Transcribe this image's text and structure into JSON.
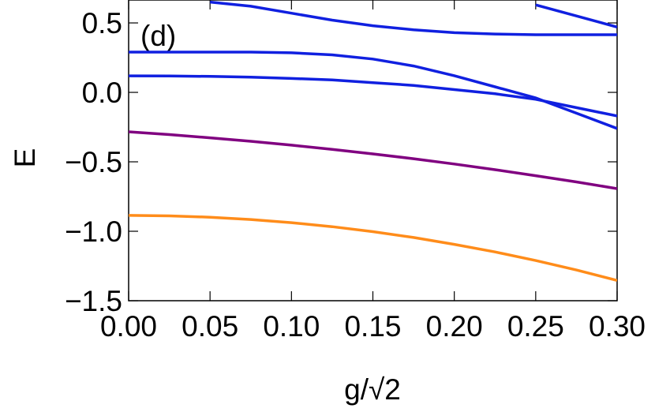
{
  "chart_data": {
    "type": "line",
    "annotation": "(d)",
    "xlabel": "g/√2",
    "ylabel": "E",
    "x": [
      0,
      0.025,
      0.05,
      0.075,
      0.1,
      0.125,
      0.15,
      0.175,
      0.2,
      0.225,
      0.25,
      0.275,
      0.3
    ],
    "xlim": [
      0,
      0.3
    ],
    "ylim": [
      -1.5,
      0.665
    ],
    "xticks": [
      {
        "value": 0,
        "label": "0.00"
      },
      {
        "value": 0.05,
        "label": "0.05"
      },
      {
        "value": 0.1,
        "label": "0.10"
      },
      {
        "value": 0.15,
        "label": "0.15"
      },
      {
        "value": 0.2,
        "label": "0.20"
      },
      {
        "value": 0.25,
        "label": "0.25"
      },
      {
        "value": 0.3,
        "label": "0.30"
      }
    ],
    "yticks": [
      {
        "value": -1.5,
        "label": "−1.5"
      },
      {
        "value": -1,
        "label": "−1.0"
      },
      {
        "value": -0.5,
        "label": "−0.5"
      },
      {
        "value": 0,
        "label": "0.0"
      },
      0.5
    ],
    "series": [
      {
        "color": "#ff8c1a",
        "values": [
          -0.886,
          -0.889,
          -0.899,
          -0.915,
          -0.938,
          -0.967,
          -1.003,
          -1.045,
          -1.094,
          -1.149,
          -1.211,
          -1.279,
          -1.354
        ]
      },
      {
        "color": "#800080",
        "values": [
          -0.284,
          -0.304,
          -0.327,
          -0.352,
          -0.38,
          -0.41,
          -0.443,
          -0.478,
          -0.516,
          -0.557,
          -0.6,
          -0.645,
          -0.693
        ]
      },
      {
        "color": "#1020e0",
        "values": [
          0.119,
          0.118,
          0.115,
          0.11,
          0.1,
          0.09,
          0.07,
          0.05,
          0.02,
          -0.01,
          -0.05,
          -0.11,
          -0.17
        ]
      },
      {
        "color": "#1020e0",
        "values": [
          0.29,
          0.29,
          0.29,
          0.29,
          0.285,
          0.27,
          0.24,
          0.19,
          0.12,
          0.04,
          -0.04,
          -0.15,
          -0.26
        ]
      },
      {
        "color": "#1020e0",
        "values": [
          null,
          null,
          0.65,
          0.62,
          0.57,
          0.52,
          0.48,
          0.45,
          0.43,
          0.42,
          0.415,
          0.415,
          0.415
        ]
      },
      {
        "color": "#1020e0",
        "values": [
          null,
          null,
          null,
          null,
          null,
          null,
          null,
          null,
          null,
          null,
          0.63,
          0.55,
          0.47
        ]
      }
    ]
  }
}
